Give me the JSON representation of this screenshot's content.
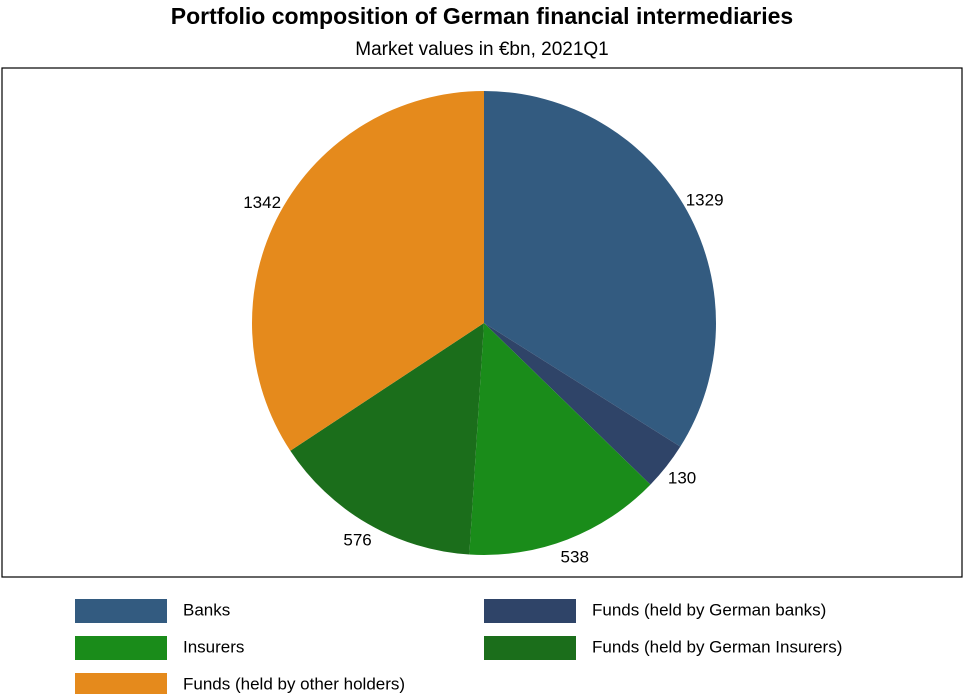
{
  "chart_data": {
    "type": "pie",
    "title": "Portfolio composition of German financial intermediaries",
    "subtitle": "Market values in €bn, 2021Q1",
    "categories": [
      "Banks",
      "Funds (held by German banks)",
      "Insurers",
      "Funds (held by German Insurers)",
      "Funds (held by other holders)"
    ],
    "values": [
      1329,
      130,
      538,
      576,
      1342
    ],
    "colors": [
      "#335b80",
      "#2f4468",
      "#1a8c1a",
      "#1b6e1b",
      "#e58a1c"
    ],
    "legend": "bottom"
  }
}
